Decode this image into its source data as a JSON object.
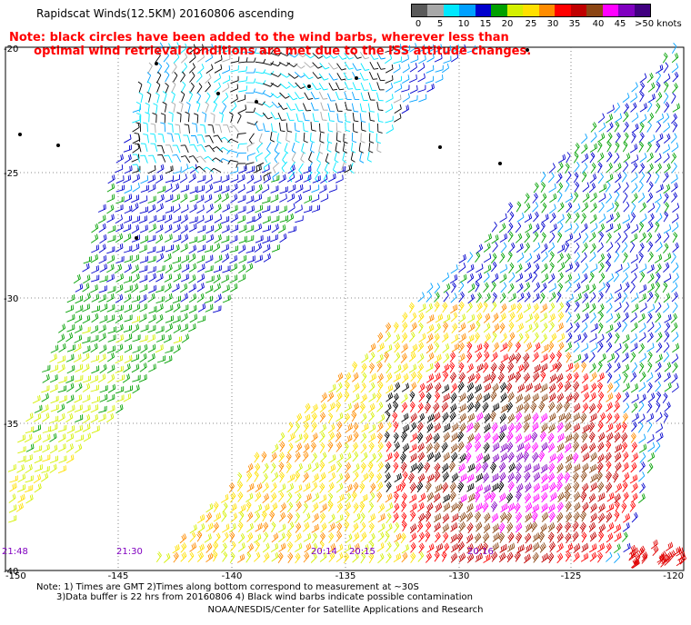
{
  "title": "Rapidscat Winds(12.5KM) 20160806 ascending",
  "note_line1": "Note: black circles have been added to the wind barbs, wherever less than",
  "note_line2": "      optimal wind retrieval conditions are met due to the ISS attitude changes.",
  "legend": {
    "labels": [
      "0",
      "5",
      "10",
      "15",
      "20",
      "25",
      "30",
      "35",
      "40",
      "45",
      ">50 knots"
    ],
    "colors": [
      "#5a5a5a",
      "#a8a8a8",
      "#00e8ff",
      "#00a0ff",
      "#0000cd",
      "#00a000",
      "#d4f000",
      "#ffe000",
      "#ff8c00",
      "#ff0000",
      "#c00000",
      "#8b4513",
      "#ff00ff",
      "#8000c0",
      "#400080"
    ]
  },
  "lat_labels": [
    "-20",
    "-25",
    "-30",
    "-35",
    "-40"
  ],
  "lon_labels": [
    "-150",
    "-145",
    "-140",
    "-135",
    "-130",
    "-125",
    "-120"
  ],
  "time_labels": [
    "21:48",
    "21:30",
    "20:14",
    "20:15",
    "20:16"
  ],
  "footer": {
    "line1": "Note: 1) Times are GMT 2)Times along bottom correspond to measurement at ~30S",
    "line2": "3)Data buffer is 22 hrs from 20160806 4) Black wind barbs indicate possible contamination",
    "line3": "NOAA/NESDIS/Center for Satellite Applications and Research"
  }
}
